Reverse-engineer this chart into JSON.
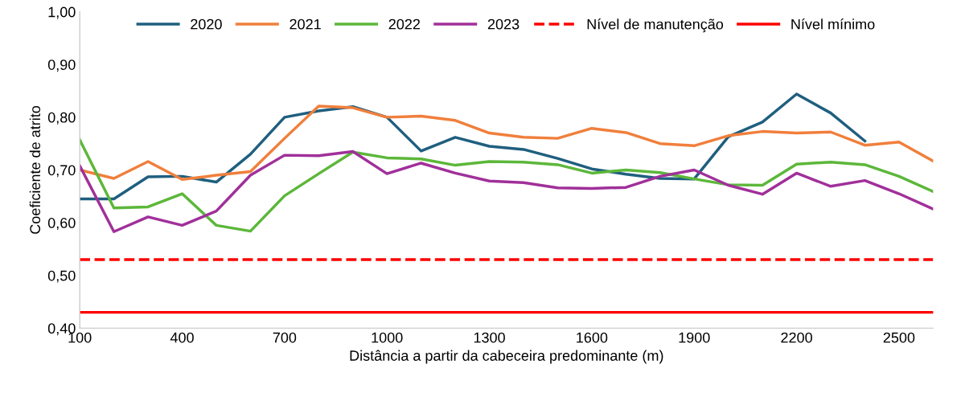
{
  "chart_data": {
    "type": "line",
    "xlabel": "Distância a partir da cabeceira predominante (m)",
    "ylabel": "Coeficiente de atrito",
    "x": [
      100,
      200,
      300,
      400,
      500,
      600,
      700,
      800,
      900,
      1000,
      1100,
      1200,
      1300,
      1400,
      1500,
      1600,
      1700,
      1800,
      1900,
      2000,
      2100,
      2200,
      2300,
      2400,
      2500,
      2600
    ],
    "series": [
      {
        "name": "2020",
        "color": "#1f5f7f",
        "values": [
          0.645,
          0.645,
          0.687,
          0.688,
          0.677,
          0.73,
          0.8,
          0.812,
          0.82,
          0.8,
          0.736,
          0.762,
          0.745,
          0.739,
          0.722,
          0.702,
          0.692,
          0.684,
          0.683,
          0.763,
          0.791,
          0.844,
          0.808,
          0.755,
          null,
          null
        ]
      },
      {
        "name": "2021",
        "color": "#f07f3c",
        "values": [
          0.7,
          0.684,
          0.716,
          0.682,
          0.69,
          0.697,
          0.76,
          0.821,
          0.818,
          0.8,
          0.802,
          0.794,
          0.77,
          0.762,
          0.76,
          0.779,
          0.771,
          0.75,
          0.746,
          0.765,
          0.773,
          0.77,
          0.772,
          0.747,
          0.753,
          0.717
        ]
      },
      {
        "name": "2022",
        "color": "#5cb73a",
        "values": [
          0.757,
          0.628,
          0.63,
          0.655,
          0.595,
          0.584,
          0.651,
          0.693,
          0.734,
          0.723,
          0.721,
          0.709,
          0.716,
          0.715,
          0.71,
          0.694,
          0.7,
          0.695,
          0.683,
          0.672,
          0.671,
          0.711,
          0.715,
          0.71,
          0.688,
          0.659
        ]
      },
      {
        "name": "2023",
        "color": "#a0309a",
        "values": [
          0.708,
          0.583,
          0.611,
          0.595,
          0.622,
          0.69,
          0.728,
          0.727,
          0.735,
          0.693,
          0.713,
          0.694,
          0.679,
          0.676,
          0.666,
          0.665,
          0.667,
          0.688,
          0.7,
          0.671,
          0.654,
          0.694,
          0.669,
          0.68,
          0.655,
          0.626
        ]
      }
    ],
    "ref_lines": [
      {
        "axis": "y",
        "value": 0.53,
        "label": "Nível de manutenção",
        "color": "#ff0000",
        "line_style": "dashed"
      },
      {
        "axis": "y",
        "value": 0.43,
        "label": "Nível mínimo",
        "color": "#ff0000",
        "line_style": "solid"
      }
    ],
    "xlim": [
      100,
      2600
    ],
    "xticks": [
      100,
      400,
      700,
      1000,
      1300,
      1600,
      1900,
      2200,
      2500
    ],
    "ylim": [
      0.4,
      1.0
    ],
    "yticks": [
      {
        "value": 0.4,
        "label": "0,40"
      },
      {
        "value": 0.5,
        "label": "0,50"
      },
      {
        "value": 0.6,
        "label": "0,60"
      },
      {
        "value": 0.7,
        "label": "0,70"
      },
      {
        "value": 0.8,
        "label": "0,80"
      },
      {
        "value": 0.9,
        "label": "0,90"
      },
      {
        "value": 1.0,
        "label": "1,00"
      }
    ],
    "grid": false,
    "legend": "top",
    "marker": "none",
    "line_style": "solid"
  }
}
